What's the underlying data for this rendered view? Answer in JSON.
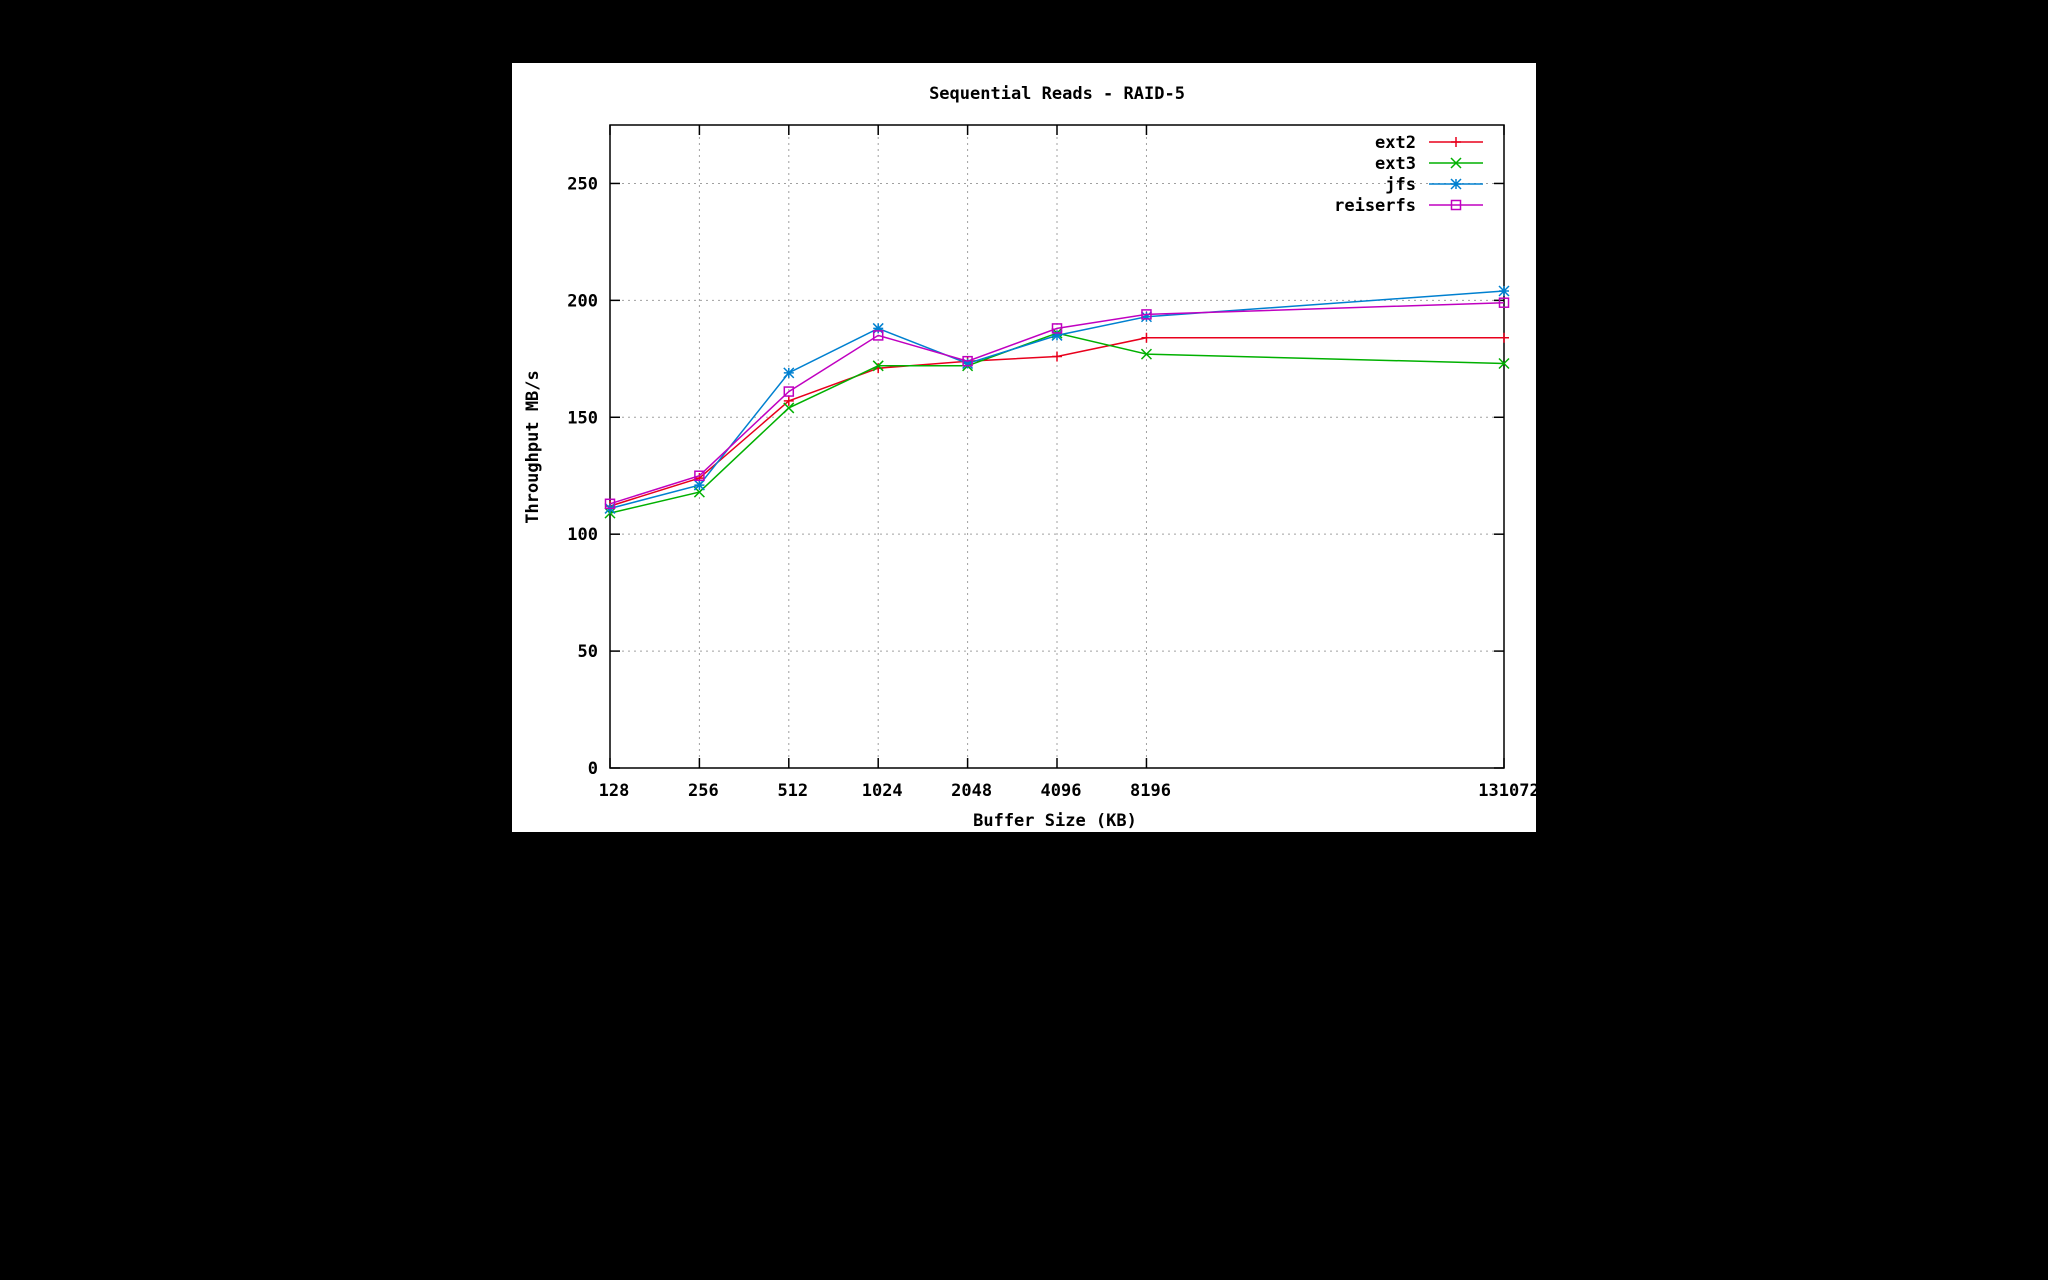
{
  "chart_data": {
    "type": "line",
    "title": "Sequential Reads - RAID-5",
    "xlabel": "Buffer Size (KB)",
    "ylabel": "Throughput MB/s",
    "x_scale": "log2",
    "x": [
      128,
      256,
      512,
      1024,
      2048,
      4096,
      8196,
      131072
    ],
    "x_tick_labels": [
      "128",
      "256",
      "512",
      "1024",
      "2048",
      "4096",
      "8196",
      "131072"
    ],
    "xlim": [
      128,
      131072
    ],
    "ylim": [
      0,
      275
    ],
    "y_ticks": [
      0,
      50,
      100,
      150,
      200,
      250
    ],
    "grid": true,
    "legend_position": "top-right",
    "series": [
      {
        "name": "ext2",
        "color": "#e8001c",
        "marker": "plus",
        "values": [
          112,
          124,
          157,
          171,
          174,
          176,
          184,
          184
        ]
      },
      {
        "name": "ext3",
        "color": "#00b000",
        "marker": "cross",
        "values": [
          109,
          118,
          154,
          172,
          172,
          186,
          177,
          173
        ]
      },
      {
        "name": "jfs",
        "color": "#0080d0",
        "marker": "star",
        "values": [
          111,
          121,
          169,
          188,
          173,
          185,
          193,
          204
        ]
      },
      {
        "name": "reiserfs",
        "color": "#c000c0",
        "marker": "square",
        "values": [
          113,
          125,
          161,
          185,
          174,
          188,
          194,
          199
        ]
      }
    ]
  }
}
